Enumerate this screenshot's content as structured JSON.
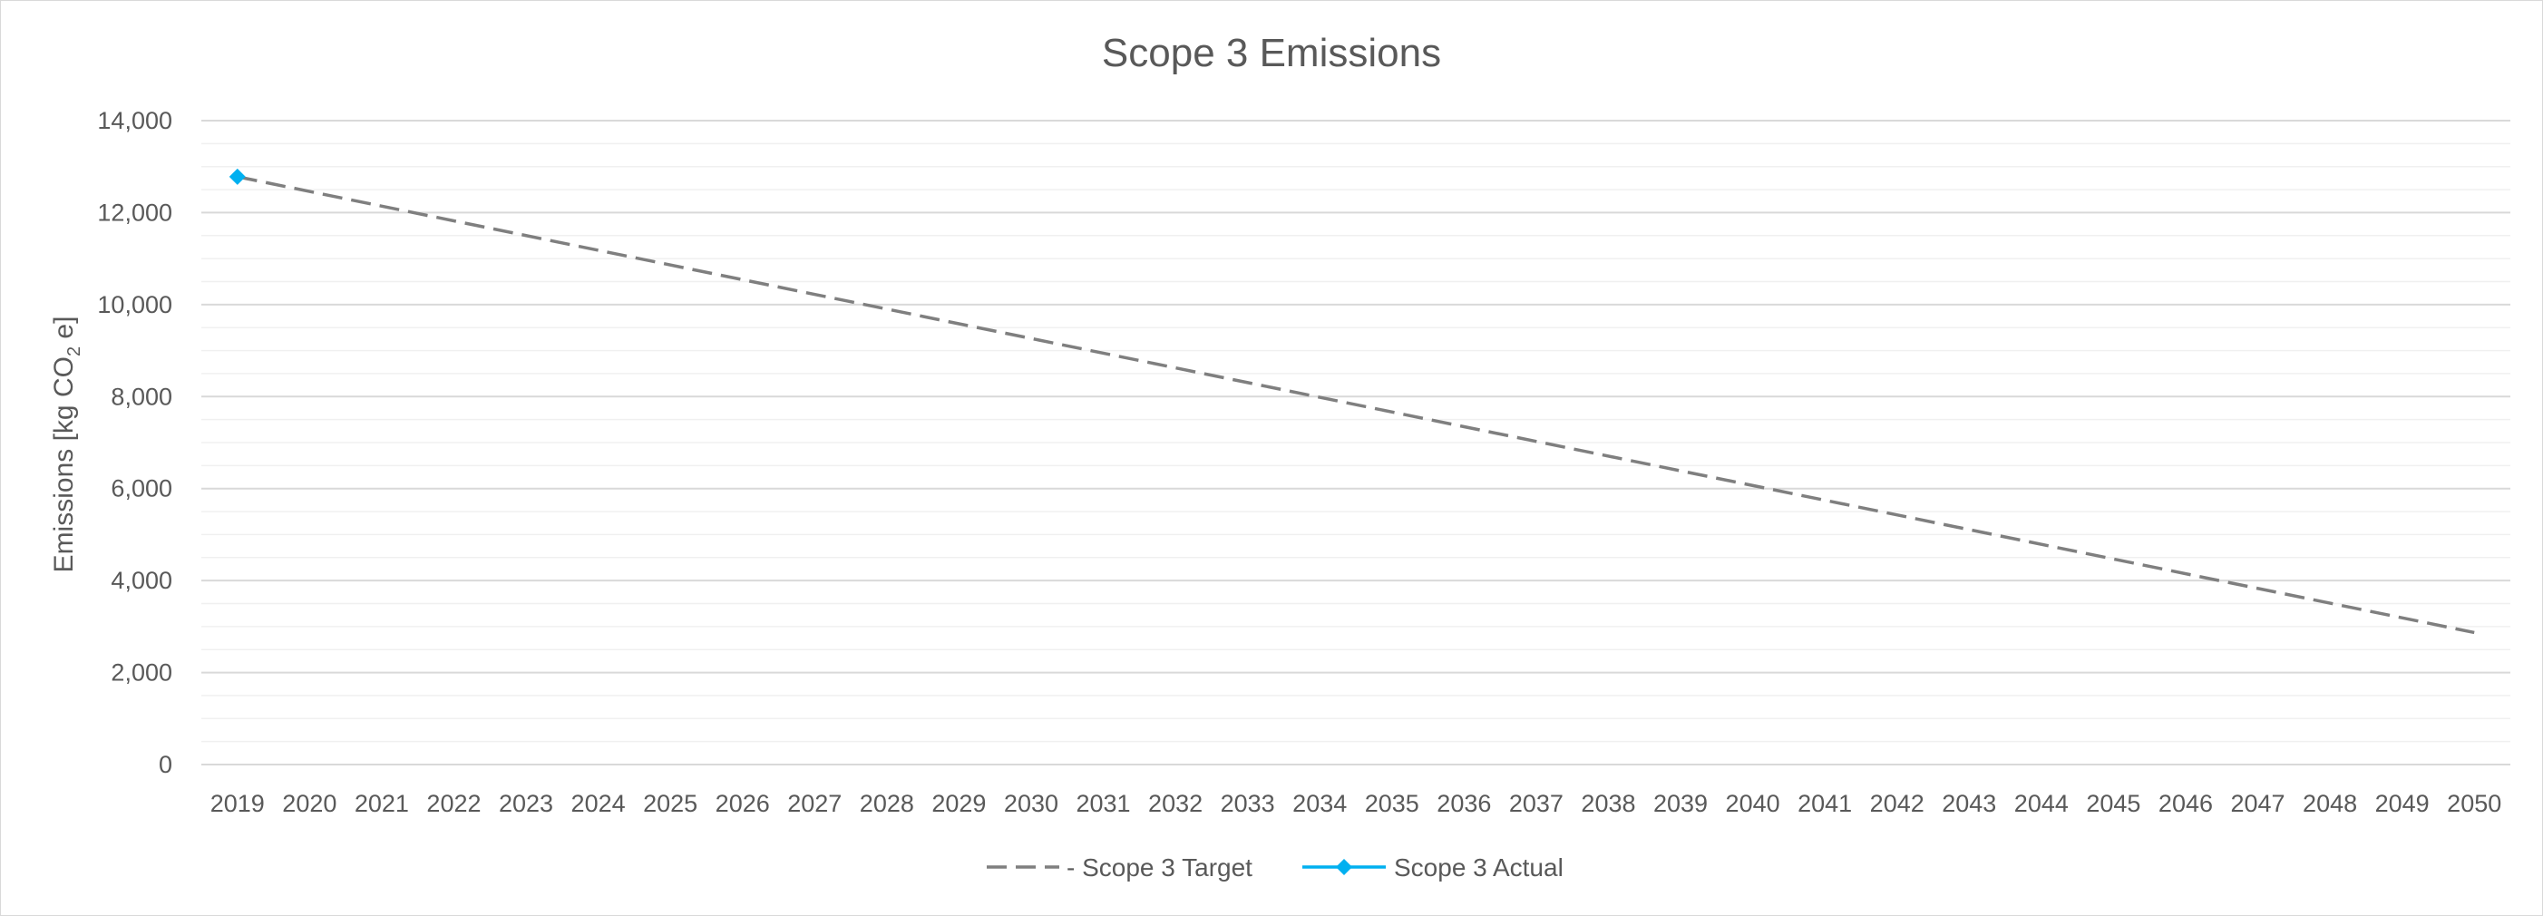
{
  "chart_data": {
    "type": "line",
    "title": "Scope 3 Emissions",
    "ylabel": "Emissions [kg CO",
    "ylabel_sub": "2",
    "ylabel_suffix": " e]",
    "xlabel": "",
    "x": [
      2019,
      2020,
      2021,
      2022,
      2023,
      2024,
      2025,
      2026,
      2027,
      2028,
      2029,
      2030,
      2031,
      2032,
      2033,
      2034,
      2035,
      2036,
      2037,
      2038,
      2039,
      2040,
      2041,
      2042,
      2043,
      2044,
      2045,
      2046,
      2047,
      2048,
      2049,
      2050
    ],
    "ylim": [
      0,
      14000
    ],
    "yticks": [
      0,
      2000,
      4000,
      6000,
      8000,
      10000,
      12000,
      14000
    ],
    "ytick_labels": [
      "0",
      "2,000",
      "4,000",
      "6,000",
      "8,000",
      "10,000",
      "12,000",
      "14,000"
    ],
    "grid": true,
    "legend_position": "bottom",
    "series": [
      {
        "name": "Scope 3 Target",
        "style": "dashed",
        "color": "#7f7f7f",
        "x": [
          2019,
          2050
        ],
        "values": [
          12780,
          2870
        ]
      },
      {
        "name": "Scope 3 Actual",
        "style": "solid-diamond",
        "color": "#00b0f0",
        "x": [
          2019
        ],
        "values": [
          12780
        ]
      }
    ]
  }
}
